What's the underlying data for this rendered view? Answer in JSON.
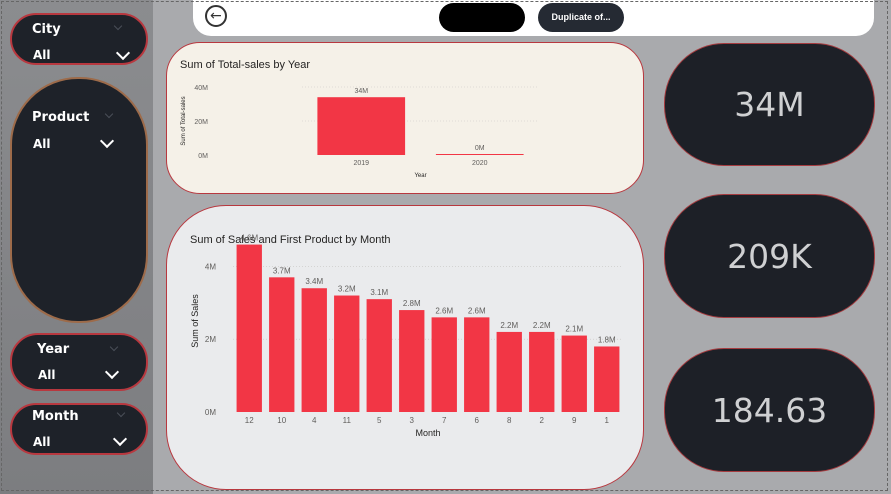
{
  "slicers": {
    "city": {
      "title": "City",
      "value": "All"
    },
    "product": {
      "title": "Product",
      "value": "All"
    },
    "year": {
      "title": "Year",
      "value": "All"
    },
    "month": {
      "title": "Month",
      "value": "All"
    }
  },
  "topbar": {
    "duplicate_label": "Duplicate of..."
  },
  "kpis": [
    "34M",
    "209K",
    "184.63"
  ],
  "chart_data": [
    {
      "type": "bar",
      "title": "Sum of Total-sales by Year",
      "xlabel": "Year",
      "ylabel": "Sum of Total-sales",
      "categories": [
        "2019",
        "2020"
      ],
      "values": [
        34,
        0.35
      ],
      "data_labels": [
        "34M",
        "0M"
      ],
      "yticks": [
        "0M",
        "20M",
        "40M"
      ],
      "ylim": [
        0,
        40
      ],
      "color": "#f23645",
      "background": "#f5f1e8",
      "grid": true
    },
    {
      "type": "bar",
      "title": "Sum of Sales and First Product by Month",
      "xlabel": "Month",
      "ylabel": "Sum of Sales",
      "categories": [
        "12",
        "10",
        "4",
        "11",
        "5",
        "3",
        "7",
        "6",
        "8",
        "2",
        "9",
        "1"
      ],
      "values": [
        4.6,
        3.7,
        3.4,
        3.2,
        3.1,
        2.8,
        2.6,
        2.6,
        2.2,
        2.2,
        2.1,
        1.8
      ],
      "data_labels": [
        "4.6M",
        "3.7M",
        "3.4M",
        "3.2M",
        "3.1M",
        "2.8M",
        "2.6M",
        "2.6M",
        "2.2M",
        "2.2M",
        "2.1M",
        "1.8M"
      ],
      "yticks": [
        "0M",
        "2M",
        "4M"
      ],
      "ylim": [
        0,
        5
      ],
      "color": "#f23645",
      "background": "#eaebed",
      "grid": true
    }
  ]
}
